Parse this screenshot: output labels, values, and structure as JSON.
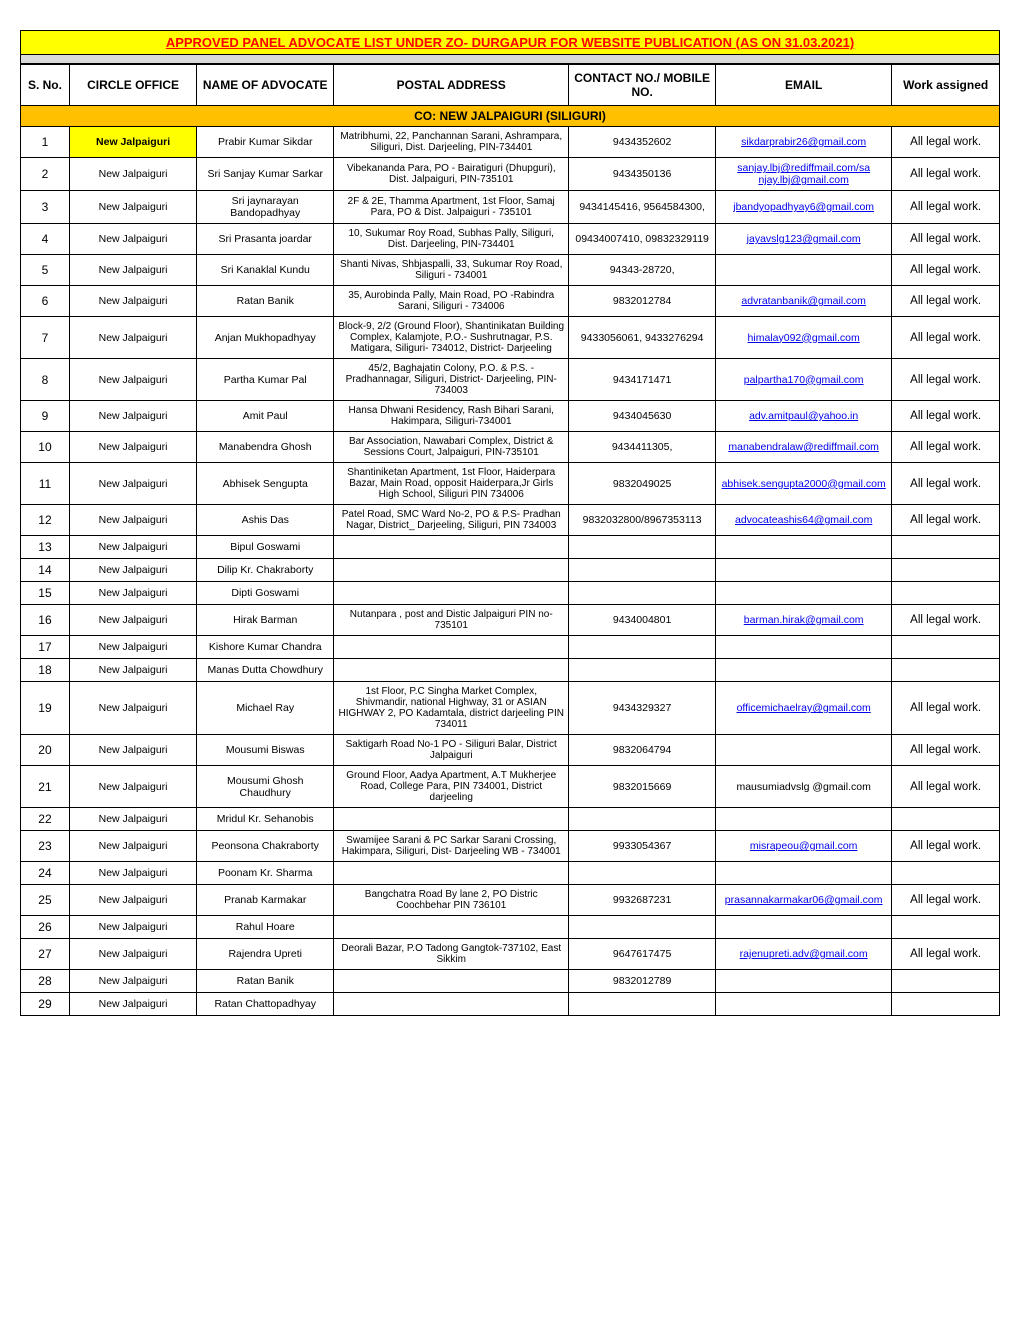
{
  "title": "APPROVED PANEL ADVOCATE LIST UNDER ZO- DURGAPUR FOR WEBSITE PUBLICATION (AS ON 31.03.2021)",
  "headers": {
    "sn": "S. No.",
    "circle": "CIRCLE OFFICE",
    "name": "NAME OF ADVOCATE",
    "addr": "POSTAL ADDRESS",
    "contact": "CONTACT NO./ MOBILE NO.",
    "email": "EMAIL",
    "work": "Work assigned"
  },
  "section": "CO: NEW JALPAIGURI (SILIGURI)",
  "rows": [
    {
      "sn": "1",
      "co": "New Jalpaiguri",
      "co_hl": true,
      "name": "Prabir Kumar Sikdar",
      "addr": "Matribhumi, 22, Panchannan Sarani, Ashrampara, Siliguri, Dist. Darjeeling, PIN-734401",
      "contact": "9434352602",
      "email": "sikdarprabir26@gmail.com",
      "email_link": true,
      "work": "All legal  work."
    },
    {
      "sn": "2",
      "co": "New Jalpaiguri",
      "name": "Sri Sanjay Kumar Sarkar",
      "addr": "Vibekananda Para, PO - Bairatiguri (Dhupguri), Dist. Jalpaiguri, PIN-735101",
      "contact": "9434350136",
      "email": "sanjay.lbj@rediffmail.com/sa njay.lbj@gmail.com",
      "email_link": true,
      "work": "All legal  work."
    },
    {
      "sn": "3",
      "co": "New Jalpaiguri",
      "name": "Sri jaynarayan Bandopadhyay",
      "addr": "2F & 2E, Thamma Apartment, 1st Floor, Samaj Para,               PO & Dist. Jalpaiguri - 735101",
      "contact": "9434145416, 9564584300,",
      "email": "jbandyopadhyay6@gmail.com",
      "email_link": true,
      "work": "All legal  work."
    },
    {
      "sn": "4",
      "co": "New Jalpaiguri",
      "name": "Sri Prasanta joardar",
      "addr": "10, Sukumar Roy Road, Subhas Pally, Siliguri, Dist. Darjeeling, PIN-734401",
      "contact": "09434007410, 09832329119",
      "email": "jayavslg123@gmail.com",
      "email_link": true,
      "work": "All legal  work."
    },
    {
      "sn": "5",
      "co": "New Jalpaiguri",
      "name": "Sri Kanaklal Kundu",
      "addr": "Shanti Nivas, Shbjaspalli, 33, Sukumar Roy Road, Siliguri - 734001",
      "contact": "94343-28720,",
      "email": "",
      "work": "All legal  work."
    },
    {
      "sn": "6",
      "co": "New Jalpaiguri",
      "name": "Ratan Banik",
      "addr": "35, Aurobinda Pally, Main Road, PO -Rabindra Sarani, Siliguri - 734006",
      "contact": "9832012784",
      "email": "advratanbanik@gmail.com",
      "email_link": true,
      "work": "All legal  work."
    },
    {
      "sn": "7",
      "co": "New Jalpaiguri",
      "name": "Anjan Mukhopadhyay",
      "addr": "Block-9, 2/2 (Ground Floor), Shantinikatan Building Complex, Kalamjote, P.O.- Sushrutnagar, P.S. Matigara, Siliguri- 734012, District- Darjeeling",
      "contact": "9433056061, 9433276294",
      "email": "himalay092@gmail.com",
      "email_link": true,
      "work": "All legal  work."
    },
    {
      "sn": "8",
      "co": "New Jalpaiguri",
      "name": "Partha Kumar Pal",
      "addr": "45/2, Baghajatin Colony, P.O. & P.S. - Pradhannagar, Siliguri, District- Darjeeling, PIN- 734003",
      "contact": "9434171471",
      "email": "palpartha170@gmail.com",
      "email_link": true,
      "work": "All legal  work."
    },
    {
      "sn": "9",
      "co": "New Jalpaiguri",
      "name": "Amit Paul",
      "addr": "Hansa Dhwani Residency, Rash Bihari Sarani, Hakimpara, Siliguri-734001",
      "contact": "9434045630",
      "email": "adv.amitpaul@yahoo.in",
      "email_link": true,
      "work": "All legal  work."
    },
    {
      "sn": "10",
      "co": "New Jalpaiguri",
      "name": "Manabendra Ghosh",
      "addr": "Bar Association, Nawabari Complex, District & Sessions Court, Jalpaiguri, PIN-735101",
      "contact": "9434411305,",
      "email": "manabendralaw@rediffmail.com",
      "email_link": true,
      "work": "All legal  work."
    },
    {
      "sn": "11",
      "co": "New Jalpaiguri",
      "name": "Abhisek Sengupta",
      "addr": "Shantiniketan Apartment, 1st Floor, Haiderpara Bazar, Main Road, opposit Haiderpara,Jr Girls High School, Siliguri PIN 734006",
      "contact": "9832049025",
      "email": "abhisek.sengupta2000@gmail.com",
      "email_link": true,
      "work": "All legal  work."
    },
    {
      "sn": "12",
      "co": "New Jalpaiguri",
      "name": "Ashis Das",
      "addr": "Patel Road, SMC Ward No-2, PO & P.S- Pradhan Nagar, District_ Darjeeling, Siliguri, PIN  734003",
      "contact": "9832032800/8967353113",
      "email": "advocateashis64@gmail.com",
      "email_link": true,
      "work": "All legal  work."
    },
    {
      "sn": "13",
      "co": "New Jalpaiguri",
      "name": "Bipul Goswami",
      "addr": "",
      "contact": "",
      "email": "",
      "work": ""
    },
    {
      "sn": "14",
      "co": "New Jalpaiguri",
      "name": "Dilip Kr. Chakraborty",
      "addr": "",
      "contact": "",
      "email": "",
      "work": ""
    },
    {
      "sn": "15",
      "co": "New Jalpaiguri",
      "name": "Dipti Goswami",
      "addr": "",
      "contact": "",
      "email": "",
      "work": ""
    },
    {
      "sn": "16",
      "co": "New Jalpaiguri",
      "name": "Hirak Barman",
      "addr": "Nutanpara , post and Distic Jalpaiguri PIN no-735101",
      "contact": "9434004801",
      "email": "barman.hirak@gmail.com",
      "email_link": true,
      "work": "All legal  work."
    },
    {
      "sn": "17",
      "co": "New Jalpaiguri",
      "name": "Kishore Kumar Chandra",
      "addr": "",
      "contact": "",
      "email": "",
      "work": ""
    },
    {
      "sn": "18",
      "co": "New Jalpaiguri",
      "name": "Manas Dutta Chowdhury",
      "addr": "",
      "contact": "",
      "email": "",
      "work": ""
    },
    {
      "sn": "19",
      "co": "New Jalpaiguri",
      "name": "Michael Ray",
      "addr": "1st Floor, P.C  Singha  Market Complex, Shivmandir, national Highway, 31 or ASIAN HIGHWAY 2, PO  Kadamtala, district  darjeeling PIN 734011",
      "contact": "9434329327",
      "email": "officemichaelray@gmail.com",
      "email_link": true,
      "work": "All legal  work."
    },
    {
      "sn": "20",
      "co": "New Jalpaiguri",
      "name": "Mousumi Biswas",
      "addr": "Saktigarh Road No-1 PO - Siliguri Balar, District  Jalpaiguri",
      "contact": "9832064794",
      "email": "",
      "work": "All legal  work."
    },
    {
      "sn": "21",
      "co": "New Jalpaiguri",
      "name": "Mousumi Ghosh Chaudhury",
      "addr": "Ground Floor, Aadya Apartment, A.T Mukherjee Road, College  Para, PIN 734001, District darjeeling",
      "contact": "9832015669",
      "email": "mausumiadvslg @gmail.com",
      "work": "All legal  work."
    },
    {
      "sn": "22",
      "co": "New Jalpaiguri",
      "name": "Mridul Kr. Sehanobis",
      "addr": "",
      "contact": "",
      "email": "",
      "work": ""
    },
    {
      "sn": "23",
      "co": "New Jalpaiguri",
      "name": "Peonsona Chakraborty",
      "addr": "Swamijee Sarani & PC Sarkar Sarani Crossing, Hakimpara, Siliguri, Dist- Darjeeling WB - 734001",
      "contact": "9933054367",
      "email": "misrapeou@gmail.com",
      "email_link": true,
      "work": "All legal  work."
    },
    {
      "sn": "24",
      "co": "New Jalpaiguri",
      "name": "Poonam Kr. Sharma",
      "addr": "",
      "contact": "",
      "email": "",
      "work": ""
    },
    {
      "sn": "25",
      "co": "New Jalpaiguri",
      "name": "Pranab Karmakar",
      "addr": "Bangchatra Road  By lane 2, PO Distric Coochbehar PIN 736101",
      "contact": "9932687231",
      "email": "prasannakarmakar06@gmail.com",
      "email_link": true,
      "work": "All legal  work."
    },
    {
      "sn": "26",
      "co": "New Jalpaiguri",
      "name": "Rahul Hoare",
      "addr": "",
      "contact": "",
      "email": "",
      "work": ""
    },
    {
      "sn": "27",
      "co": "New Jalpaiguri",
      "name": "Rajendra Upreti",
      "addr": "Deorali Bazar, P.O Tadong Gangtok-737102, East Sikkim",
      "contact": "9647617475",
      "email": "rajenupreti.adv@gmail.com",
      "email_link": true,
      "work": "All legal  work."
    },
    {
      "sn": "28",
      "co": "New Jalpaiguri",
      "name": "Ratan Banik",
      "addr": "",
      "contact": "9832012789",
      "email": "",
      "work": ""
    },
    {
      "sn": "29",
      "co": "New Jalpaiguri",
      "name": "Ratan Chattopadhyay",
      "addr": "",
      "contact": "",
      "email": "",
      "work": ""
    }
  ],
  "style": {
    "title_bg": "#ffff00",
    "title_color": "#ff0000",
    "section_bg": "#ffc000",
    "highlight_bg": "#ffff00",
    "spacer_bg": "#d9d9d9",
    "border_color": "#000000",
    "link_color": "#0000ee",
    "header_fontsize": 12,
    "cell_fontsize": 10.5,
    "font_family": "Arial"
  }
}
